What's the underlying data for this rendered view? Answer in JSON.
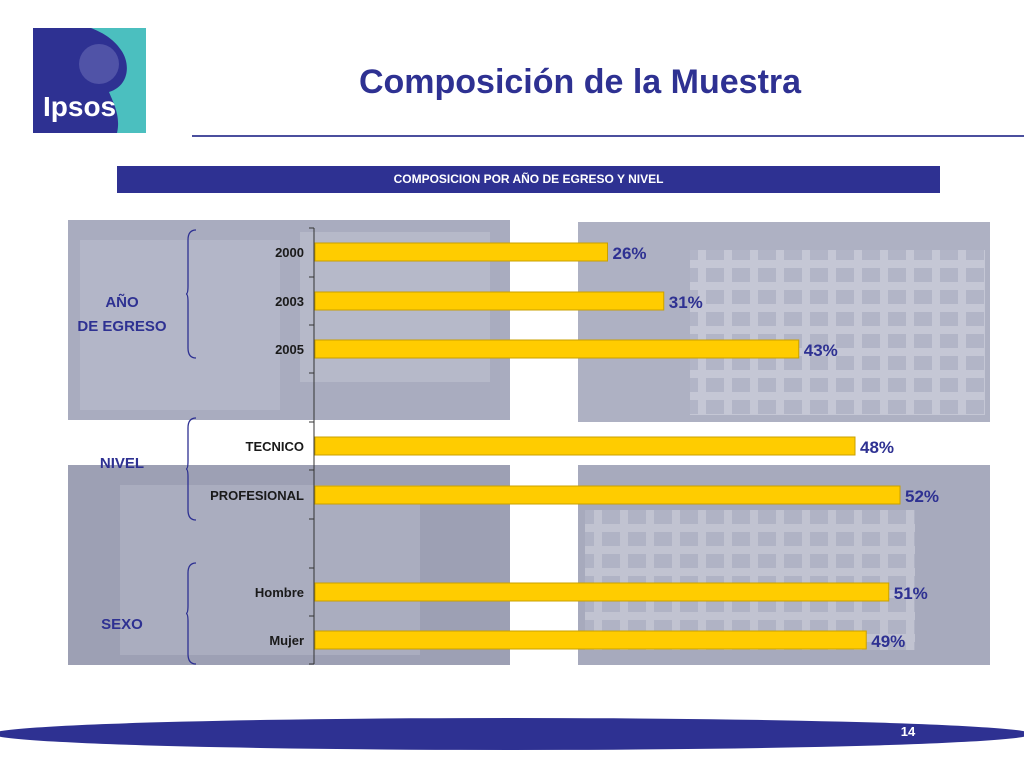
{
  "header": {
    "logo_text": "Ipsos",
    "title": "Composición de la Muestra"
  },
  "banner": {
    "text": "COMPOSICION POR  AÑO DE EGRESO Y NIVEL"
  },
  "groups": [
    {
      "id": "egreso",
      "label_lines": [
        "AÑO",
        "DE EGRESO"
      ]
    },
    {
      "id": "nivel",
      "label_lines": [
        "NIVEL"
      ]
    },
    {
      "id": "sexo",
      "label_lines": [
        "SEXO"
      ]
    }
  ],
  "chart_data": {
    "type": "bar",
    "orientation": "horizontal",
    "categories": [
      "2000",
      "2003",
      "2005",
      "TECNICO",
      "PROFESIONAL",
      "Hombre",
      "Mujer"
    ],
    "values": [
      26,
      31,
      43,
      48,
      52,
      51,
      49
    ],
    "value_labels": [
      "26%",
      "31%",
      "43%",
      "48%",
      "52%",
      "51%",
      "49%"
    ],
    "category_groups": [
      "egreso",
      "egreso",
      "egreso",
      "nivel",
      "nivel",
      "sexo",
      "sexo"
    ],
    "unit": "%",
    "bar_color": "#ffcc00",
    "bar_border_color": "#c9a000",
    "grid": false,
    "legend": "none"
  },
  "colors": {
    "brand": "#2e3192",
    "accent": "#4bbfbf",
    "background_image": "#9fa2b6"
  },
  "footer": {
    "page_number": "14"
  }
}
